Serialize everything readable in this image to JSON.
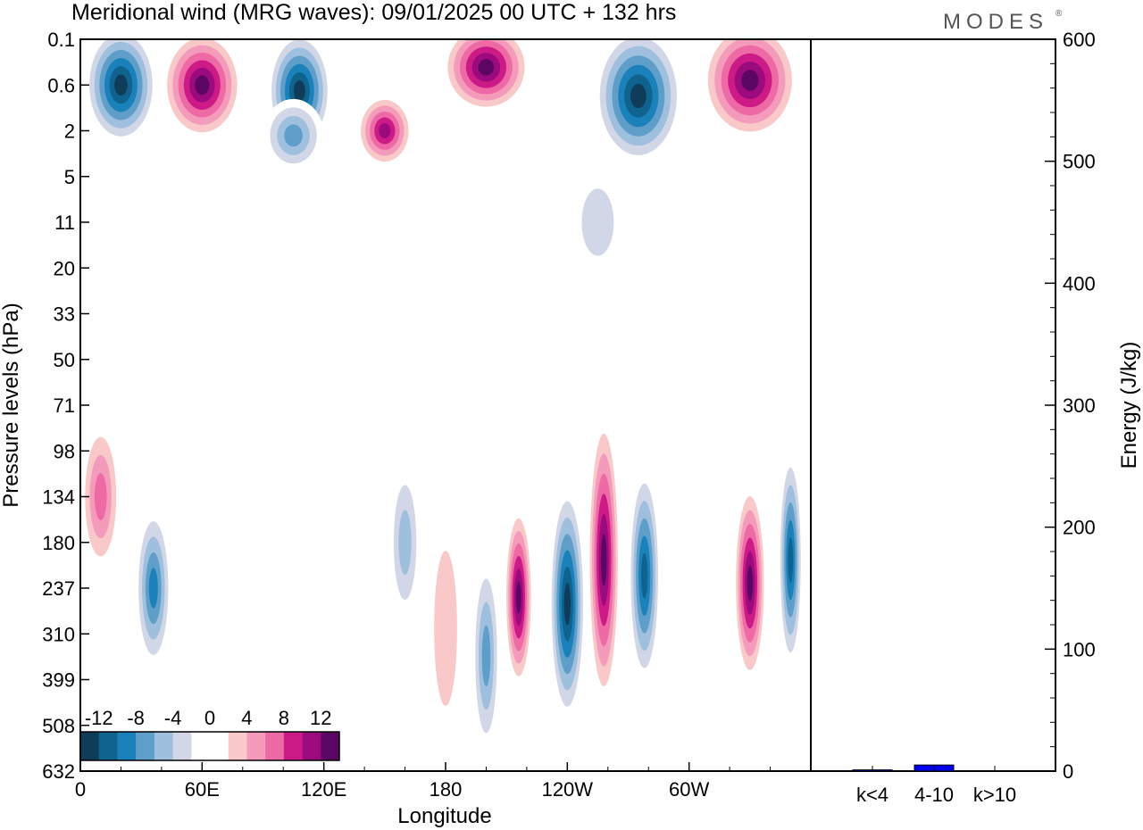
{
  "brand": "MODES",
  "brand_mark": "®",
  "chart_data": [
    {
      "type": "heatmap",
      "title": "Meridional wind (MRG waves):  09/01/2025  00 UTC  + 132 hrs",
      "xlabel": "Longitude",
      "ylabel": "Pressure levels (hPa)",
      "x_ticks": [
        "0",
        "60E",
        "120E",
        "180",
        "120W",
        "60W"
      ],
      "x_tick_values": [
        0,
        60,
        120,
        180,
        240,
        300
      ],
      "xlim": [
        0,
        360
      ],
      "y_ticks": [
        "0.1",
        "0.6",
        "2",
        "5",
        "11",
        "20",
        "33",
        "50",
        "71",
        "98",
        "134",
        "180",
        "237",
        "310",
        "399",
        "508",
        "632"
      ],
      "colorbar": {
        "labels": [
          "-12",
          "-8",
          "-4",
          "0",
          "4",
          "8",
          "12"
        ],
        "label_values": [
          -12,
          -8,
          -4,
          0,
          4,
          8,
          12
        ],
        "min": -14,
        "max": 14,
        "step": 2,
        "colors": [
          "#0e3c59",
          "#10628f",
          "#1a81bb",
          "#5f9ec9",
          "#9ebfdd",
          "#d2d7e8",
          "#ffffff",
          "#ffffff",
          "#f9c9c9",
          "#f49aba",
          "#ee6aa5",
          "#cc1a86",
          "#9c0b7e",
          "#5c0663"
        ]
      },
      "features": [
        {
          "lon": 20,
          "level": 0.6,
          "lon_w": 18,
          "lev_w": 1.3,
          "v": -14
        },
        {
          "lon": 60,
          "level": 0.6,
          "lon_w": 20,
          "lev_w": 1.2,
          "v": 14
        },
        {
          "lon": 108,
          "level": 0.7,
          "lon_w": 16,
          "lev_w": 1.3,
          "v": -13
        },
        {
          "lon": 150,
          "level": 2,
          "lon_w": 14,
          "lev_w": 0.8,
          "v": 11
        },
        {
          "lon": 105,
          "level": 2.2,
          "lon_w": 15,
          "lev_w": 0.8,
          "v": -7
        },
        {
          "lon": 200,
          "level": 0.3,
          "lon_w": 22,
          "lev_w": 1.0,
          "v": 13
        },
        {
          "lon": 275,
          "level": 0.8,
          "lon_w": 22,
          "lev_w": 1.5,
          "v": -13
        },
        {
          "lon": 330,
          "level": 0.5,
          "lon_w": 24,
          "lev_w": 1.3,
          "v": 13
        },
        {
          "lon": 255,
          "level": 11,
          "lon_w": 14,
          "lev_w": 1.3,
          "v": -3
        },
        {
          "lon": 150,
          "level": 50,
          "lon_w": 14,
          "lev_w": 2.5,
          "v": 2
        },
        {
          "lon": 10,
          "level": 134,
          "lon_w": 10,
          "lev_w": 1.7,
          "v": 8
        },
        {
          "lon": 36,
          "level": 237,
          "lon_w": 9,
          "lev_w": 1.8,
          "v": -9
        },
        {
          "lon": 160,
          "level": 180,
          "lon_w": 8,
          "lev_w": 1.8,
          "v": -5
        },
        {
          "lon": 180,
          "level": 300,
          "lon_w": 10,
          "lev_w": 3.0,
          "v": 4
        },
        {
          "lon": 200,
          "level": 350,
          "lon_w": 7,
          "lev_w": 2.2,
          "v": -7
        },
        {
          "lon": 216,
          "level": 250,
          "lon_w": 7,
          "lev_w": 2.0,
          "v": 13
        },
        {
          "lon": 240,
          "level": 260,
          "lon_w": 9,
          "lev_w": 2.6,
          "v": -14
        },
        {
          "lon": 258,
          "level": 200,
          "lon_w": 8,
          "lev_w": 3.2,
          "v": 14
        },
        {
          "lon": 278,
          "level": 220,
          "lon_w": 8,
          "lev_w": 2.4,
          "v": -11
        },
        {
          "lon": 330,
          "level": 230,
          "lon_w": 8,
          "lev_w": 2.2,
          "v": 13
        },
        {
          "lon": 350,
          "level": 200,
          "lon_w": 6,
          "lev_w": 2.4,
          "v": -11
        }
      ]
    },
    {
      "type": "bar",
      "categories": [
        "k<4",
        "4-10",
        "k>10"
      ],
      "values": [
        1,
        5,
        0
      ],
      "ylabel": "Energy (J/kg)",
      "ylim": [
        0,
        600
      ],
      "y_ticks": [
        0,
        100,
        200,
        300,
        400,
        500,
        600
      ],
      "colors": [
        "#0000ee",
        "#0000ee",
        "#0000ee"
      ]
    }
  ]
}
